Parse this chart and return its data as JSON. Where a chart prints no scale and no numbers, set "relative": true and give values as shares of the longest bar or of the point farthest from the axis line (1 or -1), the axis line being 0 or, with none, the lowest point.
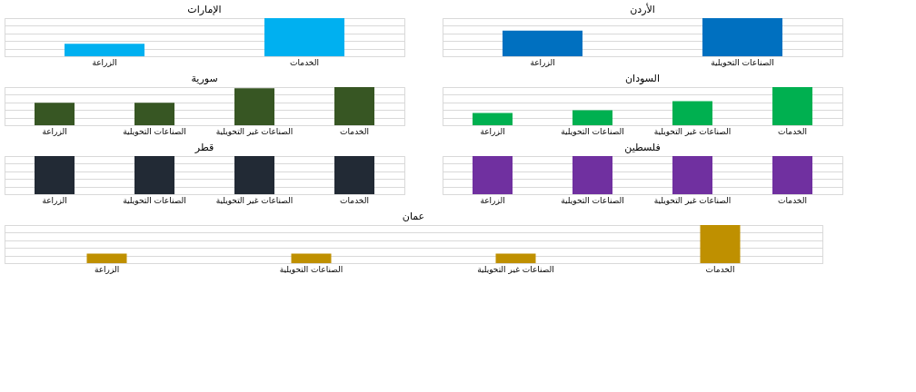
{
  "chart_data": [
    {
      "type": "bar",
      "title": "الإمارات",
      "categories": [
        "الزراعة",
        "الخدمات"
      ],
      "values": [
        0.33,
        1
      ],
      "color": "#00b0f0",
      "relative": true,
      "grid": "y"
    },
    {
      "type": "bar",
      "title": "الأردن",
      "categories": [
        "الزراعة",
        "الصناعات التحويلية"
      ],
      "values": [
        0.67,
        1
      ],
      "color": "#0070c0",
      "relative": true,
      "grid": "y"
    },
    {
      "type": "bar",
      "title": "سورية",
      "categories": [
        "الزراعة",
        "الصناعات التحويلية",
        "الصناعات غير التحويلية",
        "الخدمات"
      ],
      "values": [
        0.59,
        0.59,
        0.97,
        1
      ],
      "color": "#375623",
      "relative": true,
      "grid": "y"
    },
    {
      "type": "bar",
      "title": "السودان",
      "categories": [
        "الزراعة",
        "الصناعات التحويلية",
        "الصناعات غير التحويلية",
        "الخدمات"
      ],
      "values": [
        0.32,
        0.39,
        0.63,
        1
      ],
      "color": "#00b050",
      "relative": true,
      "grid": "y"
    },
    {
      "type": "bar",
      "title": "قطر",
      "categories": [
        "الزراعة",
        "الصناعات التحويلية",
        "الصناعات غير التحويلية",
        "الخدمات"
      ],
      "values": [
        1,
        1,
        1,
        1
      ],
      "color": "#222a35",
      "relative": true,
      "grid": "y"
    },
    {
      "type": "bar",
      "title": "فلسطين",
      "categories": [
        "الزراعة",
        "الصناعات التحويلية",
        "الصناعات غير التحويلية",
        "الخدمات"
      ],
      "values": [
        1,
        1,
        1,
        1
      ],
      "color": "#7030a0",
      "relative": true,
      "grid": "y"
    },
    {
      "type": "bar",
      "title": "عمان",
      "categories": [
        "الزراعة",
        "الصناعات التحويلية",
        "الصناعات غير التحويلية",
        "الخدمات"
      ],
      "values": [
        0.25,
        0.25,
        0.25,
        1
      ],
      "color": "#bf9000",
      "relative": true,
      "grid": "y"
    }
  ]
}
